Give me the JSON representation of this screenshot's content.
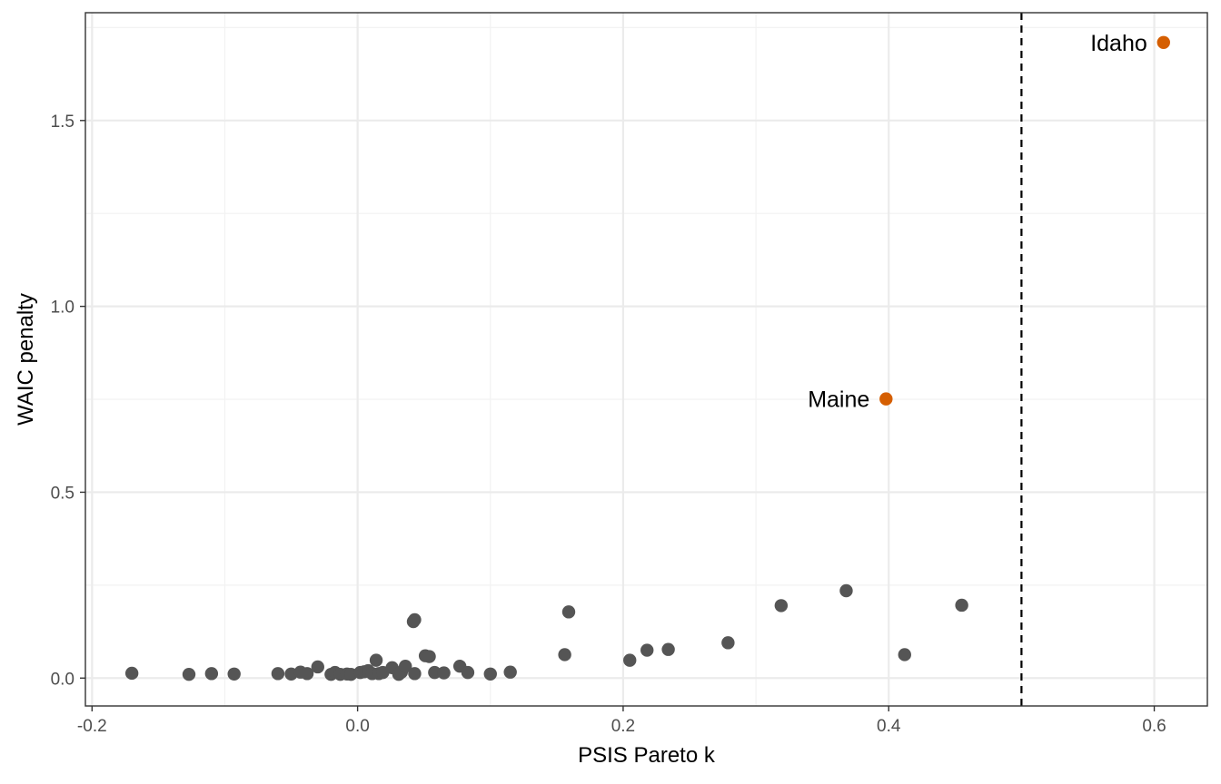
{
  "chart_data": {
    "type": "scatter",
    "title": "",
    "xlabel": "PSIS Pareto k",
    "ylabel": "WAIC penalty",
    "xlim": [
      -0.205,
      0.64
    ],
    "ylim": [
      -0.075,
      1.79
    ],
    "x_ticks": [
      -0.2,
      0.0,
      0.2,
      0.4,
      0.6
    ],
    "x_tick_labels": [
      "-0.2",
      "0.0",
      "0.2",
      "0.4",
      "0.6"
    ],
    "y_ticks": [
      0.0,
      0.5,
      1.0,
      1.5
    ],
    "y_tick_labels": [
      "0.0",
      "0.5",
      "1.0",
      "1.5"
    ],
    "grid": true,
    "reference_line": {
      "x": 0.5,
      "style": "dashed",
      "color": "#000000"
    },
    "colors": {
      "default_point": "#555555",
      "highlight_point": "#d55e00",
      "grid_major": "#ebebeb",
      "grid_minor": "#f2f2f2",
      "panel_border": "#333333"
    },
    "points": [
      {
        "x": -0.17,
        "y": 0.013
      },
      {
        "x": -0.127,
        "y": 0.01
      },
      {
        "x": -0.11,
        "y": 0.012
      },
      {
        "x": -0.093,
        "y": 0.011
      },
      {
        "x": -0.06,
        "y": 0.012
      },
      {
        "x": -0.05,
        "y": 0.011
      },
      {
        "x": -0.043,
        "y": 0.016
      },
      {
        "x": -0.038,
        "y": 0.012
      },
      {
        "x": -0.03,
        "y": 0.03
      },
      {
        "x": -0.02,
        "y": 0.01
      },
      {
        "x": -0.017,
        "y": 0.015
      },
      {
        "x": -0.013,
        "y": 0.01
      },
      {
        "x": -0.008,
        "y": 0.011
      },
      {
        "x": -0.005,
        "y": 0.01
      },
      {
        "x": 0.002,
        "y": 0.015
      },
      {
        "x": 0.005,
        "y": 0.017
      },
      {
        "x": 0.008,
        "y": 0.02
      },
      {
        "x": 0.011,
        "y": 0.012
      },
      {
        "x": 0.014,
        "y": 0.048
      },
      {
        "x": 0.016,
        "y": 0.012
      },
      {
        "x": 0.019,
        "y": 0.015
      },
      {
        "x": 0.026,
        "y": 0.028
      },
      {
        "x": 0.031,
        "y": 0.01
      },
      {
        "x": 0.033,
        "y": 0.016
      },
      {
        "x": 0.036,
        "y": 0.032
      },
      {
        "x": 0.042,
        "y": 0.152
      },
      {
        "x": 0.043,
        "y": 0.157
      },
      {
        "x": 0.043,
        "y": 0.012
      },
      {
        "x": 0.051,
        "y": 0.06
      },
      {
        "x": 0.054,
        "y": 0.058
      },
      {
        "x": 0.058,
        "y": 0.015
      },
      {
        "x": 0.065,
        "y": 0.014
      },
      {
        "x": 0.077,
        "y": 0.032
      },
      {
        "x": 0.083,
        "y": 0.015
      },
      {
        "x": 0.1,
        "y": 0.011
      },
      {
        "x": 0.115,
        "y": 0.016
      },
      {
        "x": 0.156,
        "y": 0.063
      },
      {
        "x": 0.159,
        "y": 0.178
      },
      {
        "x": 0.205,
        "y": 0.048
      },
      {
        "x": 0.218,
        "y": 0.075
      },
      {
        "x": 0.234,
        "y": 0.077
      },
      {
        "x": 0.279,
        "y": 0.095
      },
      {
        "x": 0.319,
        "y": 0.195
      },
      {
        "x": 0.368,
        "y": 0.235
      },
      {
        "x": 0.412,
        "y": 0.063
      },
      {
        "x": 0.455,
        "y": 0.196
      },
      {
        "x": 0.398,
        "y": 0.751,
        "label": "Maine",
        "highlight": true
      },
      {
        "x": 0.607,
        "y": 1.71,
        "label": "Idaho",
        "highlight": true
      }
    ]
  }
}
